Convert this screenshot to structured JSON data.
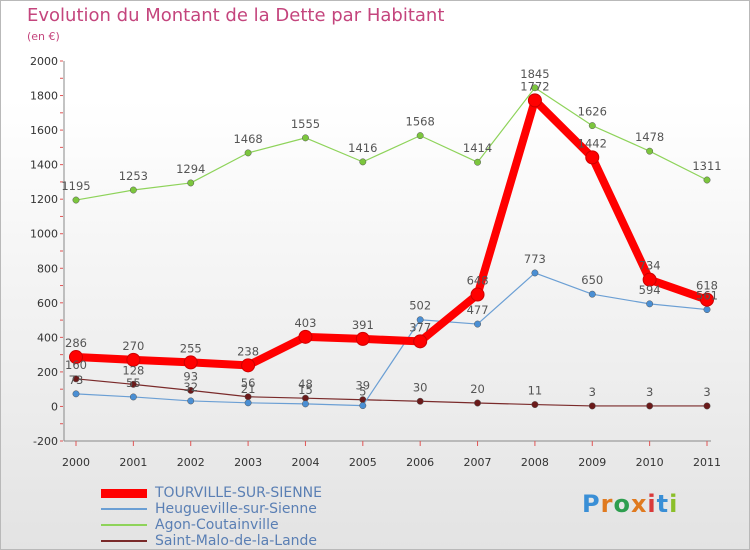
{
  "header": {
    "title": "Evolution du Montant de la Dette par Habitant",
    "subtitle": "(en €)"
  },
  "logo": {
    "text": "Proxiti",
    "letter_colors": [
      "#3a8fd6",
      "#e07a1f",
      "#2e9e4f",
      "#e07a1f",
      "#d93a3a",
      "#3a8fd6",
      "#8bbf2a"
    ]
  },
  "chart_data": {
    "type": "line",
    "title": "Evolution du Montant de la Dette par Habitant",
    "subtitle": "(en €)",
    "x": [
      "2000",
      "2001",
      "2002",
      "2003",
      "2004",
      "2005",
      "2006",
      "2007",
      "2008",
      "2009",
      "2010",
      "2011"
    ],
    "ylim": [
      -200,
      2000
    ],
    "yticks": [
      -200,
      0,
      200,
      400,
      600,
      800,
      1000,
      1200,
      1400,
      1600,
      1800,
      2000
    ],
    "grid": false,
    "legend_position": "bottom-left",
    "series": [
      {
        "name": "TOURVILLE-SUR-SIENNE",
        "color": "#ff0000",
        "values": [
          286,
          270,
          255,
          238,
          403,
          391,
          377,
          648,
          1772,
          1442,
          734,
          618
        ],
        "labels": [
          "286",
          "270",
          "255",
          "238",
          "403",
          "391",
          "377",
          "648",
          "1772",
          "1442",
          "734",
          "618"
        ]
      },
      {
        "name": "Heugueville-sur-Sienne",
        "color": "#6b9fd4",
        "values": [
          73,
          55,
          32,
          21,
          15,
          5,
          502,
          477,
          773,
          650,
          594,
          561
        ],
        "labels": [
          "73",
          "55",
          "32",
          "21",
          "15",
          "5",
          "502",
          "477",
          "773",
          "650",
          "594",
          "561"
        ]
      },
      {
        "name": "Agon-Coutainville",
        "color": "#8ed35a",
        "values": [
          1195,
          1253,
          1294,
          1468,
          1555,
          1416,
          1568,
          1414,
          1845,
          1626,
          1478,
          1311
        ],
        "labels": [
          "1195",
          "1253",
          "1294",
          "1468",
          "1555",
          "1416",
          "1568",
          "1414",
          "1845",
          "1626",
          "1478",
          "1311"
        ]
      },
      {
        "name": "Saint-Malo-de-la-Lande",
        "color": "#7a2a2a",
        "values": [
          160,
          128,
          93,
          56,
          48,
          39,
          30,
          20,
          11,
          3,
          3,
          3
        ],
        "labels": [
          "160",
          "128",
          "93",
          "56",
          "48",
          "39",
          "30",
          "20",
          "11",
          "3",
          "3",
          "3"
        ]
      }
    ]
  }
}
